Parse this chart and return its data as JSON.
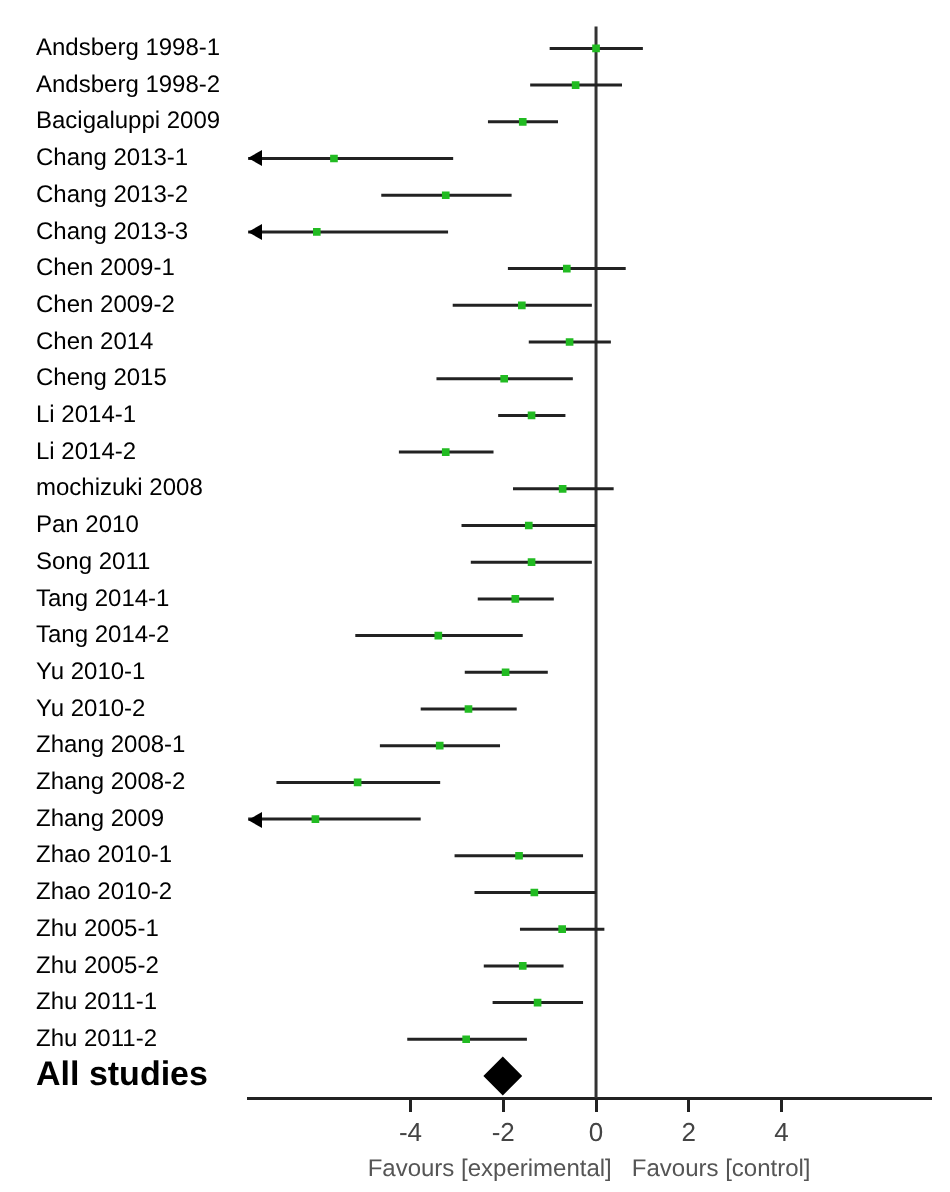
{
  "chart_data": {
    "type": "scatter",
    "orientation": "horizontal",
    "xlabel": "Favours [experimental]   Favours [control]",
    "categories": [
      "Andsberg 1998-1",
      "Andsberg 1998-2",
      "Bacigaluppi 2009",
      "Chang 2013-1",
      "Chang 2013-2",
      "Chang 2013-3",
      "Chen 2009-1",
      "Chen 2009-2",
      "Chen 2014",
      "Cheng 2015",
      "Li 2014-1",
      "Li 2014-2",
      "mochizuki 2008",
      "Pan 2010",
      "Song 2011",
      "Tang 2014-1",
      "Tang 2014-2",
      "Yu 2010-1",
      "Yu 2010-2",
      "Zhang 2008-1",
      "Zhang 2008-2",
      "Zhang 2009",
      "Zhao 2010-1",
      "Zhao 2010-2",
      "Zhu 2005-1",
      "Zhu 2005-2",
      "Zhu 2011-1",
      "Zhu 2011-2",
      "All studies"
    ],
    "xlim": [
      -7.5,
      7.2
    ],
    "xticks": [
      -4,
      -2,
      0,
      2,
      4
    ],
    "ref_lines": [
      {
        "axis": "x",
        "value": 0
      }
    ],
    "series": [
      {
        "marker": "square",
        "color": "#22bb22",
        "values": [
          0,
          -0.44,
          -1.58,
          -5.65,
          -3.24,
          -6.02,
          -0.63,
          -1.6,
          -0.57,
          -1.98,
          -1.39,
          -3.24,
          -0.72,
          -1.45,
          -1.39,
          -1.74,
          -3.4,
          -1.95,
          -2.75,
          -3.37,
          -5.14,
          -6.05,
          -1.66,
          -1.33,
          -0.73,
          -1.58,
          -1.26,
          -2.8,
          null
        ],
        "errors": [
          [
            -1,
            1.01
          ],
          [
            -1.42,
            0.56
          ],
          [
            -2.33,
            -0.82
          ],
          [
            -7.5,
            -3.08
          ],
          [
            -4.63,
            -1.82
          ],
          [
            -7.5,
            -3.19
          ],
          [
            -1.9,
            0.64
          ],
          [
            -3.09,
            -0.09
          ],
          [
            -1.45,
            0.32
          ],
          [
            -3.44,
            -0.5
          ],
          [
            -2.11,
            -0.66
          ],
          [
            -4.25,
            -2.21
          ],
          [
            -1.79,
            0.38
          ],
          [
            -2.9,
            0
          ],
          [
            -2.7,
            -0.09
          ],
          [
            -2.55,
            -0.91
          ],
          [
            -5.19,
            -1.58
          ],
          [
            -2.83,
            -1.04
          ],
          [
            -3.78,
            -1.71
          ],
          [
            -4.66,
            -2.07
          ],
          [
            -6.89,
            -3.36
          ],
          [
            -7.5,
            -3.78
          ],
          [
            -3.05,
            -0.28
          ],
          [
            -2.62,
            0
          ],
          [
            -1.64,
            0.18
          ],
          [
            -2.42,
            -0.7
          ],
          [
            -2.23,
            -0.28
          ],
          [
            -4.07,
            -1.49
          ],
          null
        ]
      },
      {
        "marker": "diamond",
        "color": "#000000",
        "values": [
          null,
          null,
          null,
          null,
          null,
          null,
          null,
          null,
          null,
          null,
          null,
          null,
          null,
          null,
          null,
          null,
          null,
          null,
          null,
          null,
          null,
          null,
          null,
          null,
          null,
          null,
          null,
          null,
          -2.01
        ]
      }
    ]
  }
}
